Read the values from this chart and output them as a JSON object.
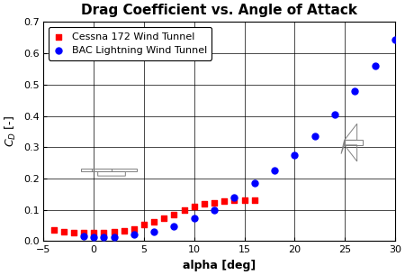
{
  "title": "Drag Coefficient vs. Angle of Attack",
  "xlabel": "alpha [deg]",
  "ylabel": "$C_D$ [-]",
  "xlim": [
    -5,
    30
  ],
  "ylim": [
    0,
    0.7
  ],
  "xticks": [
    -5,
    0,
    5,
    10,
    15,
    20,
    25,
    30
  ],
  "yticks": [
    0,
    0.1,
    0.2,
    0.3,
    0.4,
    0.5,
    0.6,
    0.7
  ],
  "cessna_x": [
    -4,
    -3,
    -2,
    -1,
    0,
    1,
    2,
    3,
    4,
    5,
    6,
    7,
    8,
    9,
    10,
    11,
    12,
    13,
    14,
    15,
    16
  ],
  "cessna_y": [
    0.035,
    0.03,
    0.028,
    0.027,
    0.027,
    0.028,
    0.03,
    0.034,
    0.04,
    0.052,
    0.062,
    0.074,
    0.086,
    0.098,
    0.11,
    0.118,
    0.122,
    0.127,
    0.13,
    0.13,
    0.132
  ],
  "bac_x": [
    -1,
    0,
    1,
    2,
    4,
    6,
    8,
    10,
    12,
    14,
    16,
    18,
    20,
    22,
    24,
    26,
    28,
    30
  ],
  "bac_y": [
    0.015,
    0.013,
    0.012,
    0.014,
    0.02,
    0.03,
    0.048,
    0.072,
    0.1,
    0.14,
    0.185,
    0.225,
    0.275,
    0.335,
    0.405,
    0.48,
    0.56,
    0.645
  ],
  "cessna_color": "#FF0000",
  "bac_color": "#0000FF",
  "cessna_label": "Cessna 172 Wind Tunnel",
  "bac_label": "BAC Lightning Wind Tunnel",
  "bg_color": "#FFFFFF",
  "title_fontsize": 11,
  "axis_label_fontsize": 9,
  "tick_fontsize": 8,
  "legend_fontsize": 8
}
